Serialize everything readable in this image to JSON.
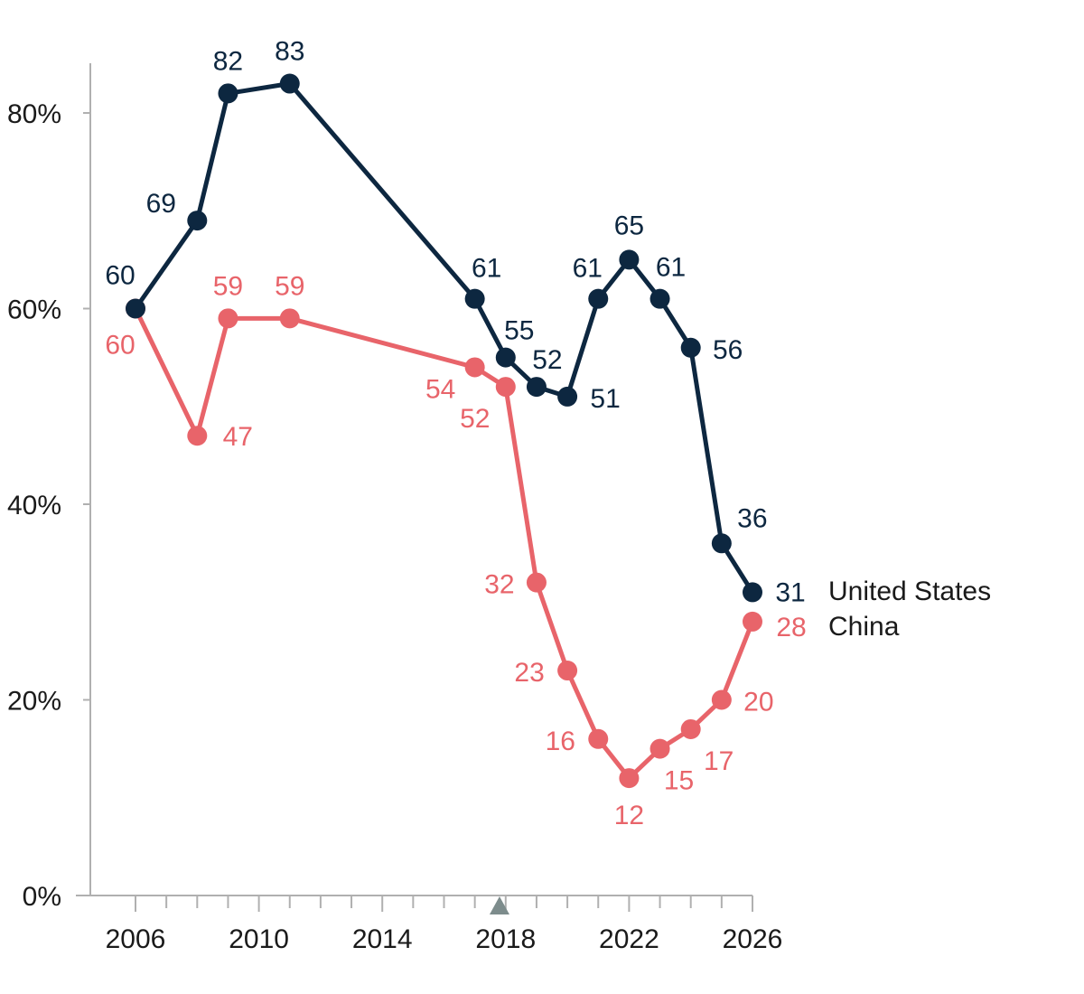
{
  "chart_data": {
    "type": "line",
    "title": "",
    "xlabel": "",
    "ylabel": "",
    "xlim": [
      2005,
      2026
    ],
    "ylim": [
      0,
      80
    ],
    "x_ticks": [
      2006,
      2010,
      2014,
      2018,
      2022,
      2026
    ],
    "x_tick_labels": [
      "2006",
      "2010",
      "2014",
      "2018",
      "2022",
      "2026"
    ],
    "y_ticks": [
      0,
      20,
      40,
      60,
      80
    ],
    "y_tick_labels": [
      "0%",
      "20%",
      "40%",
      "60%",
      "80%"
    ],
    "marker_year": 2017.8,
    "grid": false,
    "legend": "inline-right",
    "series": [
      {
        "name": "United States",
        "color": "#0d2740",
        "x": [
          2006,
          2008,
          2009,
          2011,
          2017,
          2018,
          2019,
          2020,
          2021,
          2022,
          2023,
          2024,
          2025,
          2026
        ],
        "values": [
          60,
          69,
          82,
          83,
          61,
          55,
          52,
          51,
          61,
          65,
          61,
          56,
          36,
          31
        ]
      },
      {
        "name": "China",
        "color": "#e8646a",
        "x": [
          2006,
          2008,
          2009,
          2011,
          2017,
          2018,
          2019,
          2020,
          2021,
          2022,
          2023,
          2024,
          2025,
          2026
        ],
        "values": [
          60,
          47,
          59,
          59,
          54,
          52,
          32,
          23,
          16,
          12,
          15,
          17,
          20,
          28
        ]
      }
    ]
  }
}
